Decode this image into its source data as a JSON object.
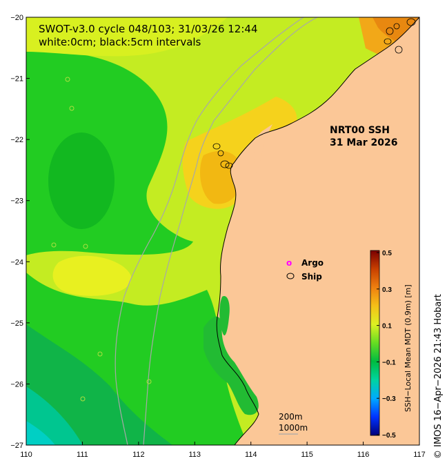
{
  "title": {
    "line1": "SWOT-v3.0 cycle 048/103; 31/03/26 12:44",
    "line2": "white:0cm; black:5cm intervals"
  },
  "product": {
    "name": "NRT00 SSH",
    "date": "31 Mar 2026"
  },
  "legend": {
    "argo_symbol": "o",
    "argo_label": "Argo",
    "ship_label": "Ship",
    "argo_color": "#ff00ff"
  },
  "isobaths": {
    "shallow": "200m",
    "deep": "1000m"
  },
  "axes": {
    "x_ticks": [
      "110",
      "111",
      "112",
      "113",
      "114",
      "115",
      "116",
      "117"
    ],
    "y_ticks": [
      "−20",
      "−21",
      "−22",
      "−23",
      "−24",
      "−25",
      "−26",
      "−27"
    ],
    "x_range": [
      110,
      117
    ],
    "y_range": [
      -27,
      -20
    ]
  },
  "colorbar": {
    "label": "SSH−Local Mean MDT (0.9m) [m]",
    "tick_labels": [
      "0.5",
      "0.3",
      "0.1",
      "−0.1",
      "−0.3",
      "−0.5"
    ],
    "range": [
      -0.5,
      0.5
    ]
  },
  "credit": "© IMOS 16−Apr−2026 21:43 Hobart",
  "colors": {
    "land": "#fbc797",
    "isobath": "#a8a8a8"
  }
}
